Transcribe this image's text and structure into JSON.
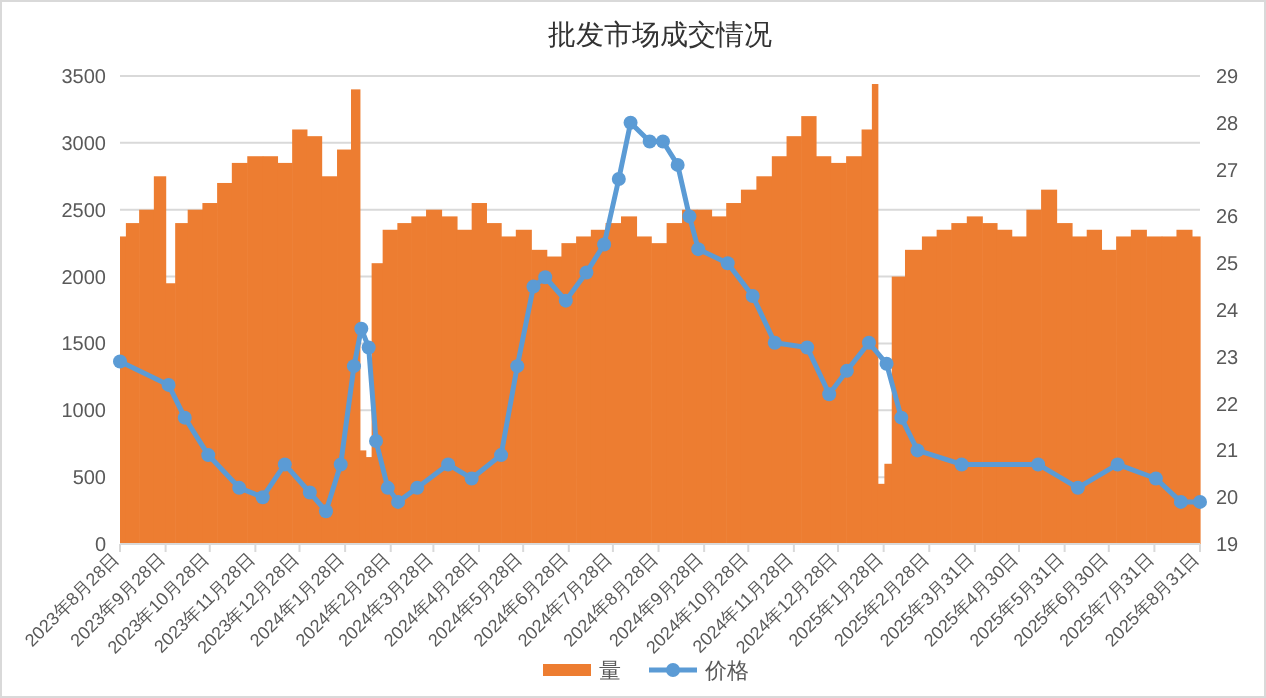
{
  "chart_data": {
    "type": "bar",
    "title": "批发市场成交情况",
    "x": [
      "2023-08-28",
      "2023-09-05",
      "2023-09-15",
      "2023-09-25",
      "2023-10-01",
      "2023-10-08",
      "2023-10-18",
      "2023-10-28",
      "2023-11-07",
      "2023-11-17",
      "2023-11-28",
      "2023-12-08",
      "2023-12-18",
      "2023-12-28",
      "2024-01-07",
      "2024-01-17",
      "2024-01-28",
      "2024-02-05",
      "2024-02-09",
      "2024-02-13",
      "2024-02-17",
      "2024-02-28",
      "2024-03-08",
      "2024-03-18",
      "2024-03-28",
      "2024-04-08",
      "2024-04-18",
      "2024-04-28",
      "2024-05-08",
      "2024-05-18",
      "2024-05-28",
      "2024-06-08",
      "2024-06-18",
      "2024-06-28",
      "2024-07-08",
      "2024-07-18",
      "2024-07-28",
      "2024-08-08",
      "2024-08-18",
      "2024-08-28",
      "2024-09-08",
      "2024-09-18",
      "2024-09-28",
      "2024-10-08",
      "2024-10-18",
      "2024-10-28",
      "2024-11-08",
      "2024-11-18",
      "2024-11-28",
      "2024-12-08",
      "2024-12-18",
      "2024-12-28",
      "2025-01-08",
      "2025-01-18",
      "2025-01-22",
      "2025-01-26",
      "2025-01-31",
      "2025-02-05",
      "2025-02-18",
      "2025-02-28",
      "2025-03-10",
      "2025-03-20",
      "2025-03-31",
      "2025-04-10",
      "2025-04-20",
      "2025-04-30",
      "2025-05-10",
      "2025-05-20",
      "2025-05-31",
      "2025-06-10",
      "2025-06-20",
      "2025-06-30",
      "2025-07-10",
      "2025-07-20",
      "2025-07-31",
      "2025-08-10",
      "2025-08-20",
      "2025-08-31"
    ],
    "series": [
      {
        "name": "量",
        "color": "#ed7d31",
        "values": [
          2300,
          2400,
          2500,
          2750,
          1950,
          2400,
          2500,
          2550,
          2700,
          2850,
          2900,
          2900,
          2850,
          3100,
          3050,
          2750,
          2950,
          3400,
          700,
          650,
          2100,
          2350,
          2400,
          2450,
          2500,
          2450,
          2350,
          2550,
          2400,
          2300,
          2350,
          2200,
          2150,
          2250,
          2300,
          2350,
          2400,
          2450,
          2300,
          2250,
          2400,
          2500,
          2500,
          2450,
          2550,
          2650,
          2750,
          2900,
          3050,
          3200,
          2900,
          2850,
          2900,
          3100,
          3440,
          450,
          600,
          2000,
          2200,
          2300,
          2350,
          2400,
          2450,
          2400,
          2350,
          2300,
          2500,
          2650,
          2400,
          2300,
          2350,
          2200,
          2300,
          2350,
          2300,
          2300,
          2350,
          2300
        ]
      },
      {
        "name": "价格",
        "type": "line",
        "axis": "y2",
        "color": "#5b9bd5",
        "marker": "circle",
        "x": [
          "2023-08-28",
          "2023-09-30",
          "2023-10-11",
          "2023-10-27",
          "2023-11-17",
          "2023-12-03",
          "2023-12-18",
          "2024-01-04",
          "2024-01-15",
          "2024-01-25",
          "2024-02-03",
          "2024-02-08",
          "2024-02-13",
          "2024-02-18",
          "2024-02-26",
          "2024-03-04",
          "2024-03-17",
          "2024-04-07",
          "2024-04-23",
          "2024-05-13",
          "2024-05-24",
          "2024-06-04",
          "2024-06-12",
          "2024-06-26",
          "2024-07-10",
          "2024-07-22",
          "2024-08-01",
          "2024-08-09",
          "2024-08-22",
          "2024-08-31",
          "2024-09-10",
          "2024-09-18",
          "2024-09-24",
          "2024-10-14",
          "2024-10-31",
          "2024-11-15",
          "2024-12-07",
          "2024-12-22",
          "2025-01-03",
          "2025-01-18",
          "2025-01-30",
          "2025-02-09",
          "2025-02-20",
          "2025-03-22",
          "2025-05-13",
          "2025-06-09",
          "2025-07-06",
          "2025-08-01",
          "2025-08-18",
          "2025-08-31"
        ],
        "values": [
          22.9,
          22.4,
          21.7,
          20.9,
          20.2,
          20.0,
          20.7,
          20.1,
          19.7,
          20.7,
          22.8,
          23.6,
          23.2,
          21.2,
          20.2,
          19.9,
          20.2,
          20.7,
          20.4,
          20.9,
          22.8,
          24.5,
          24.7,
          24.2,
          24.8,
          25.4,
          26.8,
          28.0,
          27.6,
          27.6,
          27.1,
          26.0,
          25.3,
          25.0,
          24.3,
          23.3,
          23.2,
          22.2,
          22.7,
          23.3,
          22.85,
          21.7,
          21.0,
          20.7,
          20.7,
          20.2,
          20.7,
          20.4,
          19.9,
          19.9
        ]
      }
    ],
    "xlim": [
      "2023-08-28",
      "2025-08-31"
    ],
    "xticks": [
      {
        "value": "2023-08-28",
        "label": "2023年8月28日"
      },
      {
        "value": "2023-09-28",
        "label": "2023年9月28日"
      },
      {
        "value": "2023-10-28",
        "label": "2023年10月28日"
      },
      {
        "value": "2023-11-28",
        "label": "2023年11月28日"
      },
      {
        "value": "2023-12-28",
        "label": "2023年12月28日"
      },
      {
        "value": "2024-01-28",
        "label": "2024年1月28日"
      },
      {
        "value": "2024-02-28",
        "label": "2024年2月28日"
      },
      {
        "value": "2024-03-28",
        "label": "2024年3月28日"
      },
      {
        "value": "2024-04-28",
        "label": "2024年4月28日"
      },
      {
        "value": "2024-05-28",
        "label": "2024年5月28日"
      },
      {
        "value": "2024-06-28",
        "label": "2024年6月28日"
      },
      {
        "value": "2024-07-28",
        "label": "2024年7月28日"
      },
      {
        "value": "2024-08-28",
        "label": "2024年8月28日"
      },
      {
        "value": "2024-09-28",
        "label": "2024年9月28日"
      },
      {
        "value": "2024-10-28",
        "label": "2024年10月28日"
      },
      {
        "value": "2024-11-28",
        "label": "2024年11月28日"
      },
      {
        "value": "2024-12-28",
        "label": "2024年12月28日"
      },
      {
        "value": "2025-01-28",
        "label": "2025年1月28日"
      },
      {
        "value": "2025-02-28",
        "label": "2025年2月28日"
      },
      {
        "value": "2025-03-31",
        "label": "2025年3月31日"
      },
      {
        "value": "2025-04-30",
        "label": "2025年4月30日"
      },
      {
        "value": "2025-05-31",
        "label": "2025年5月31日"
      },
      {
        "value": "2025-06-30",
        "label": "2025年6月30日"
      },
      {
        "value": "2025-07-31",
        "label": "2025年7月31日"
      },
      {
        "value": "2025-08-31",
        "label": "2025年8月31日"
      }
    ],
    "ylim": [
      0,
      3500
    ],
    "yticks": [
      0,
      500,
      1000,
      1500,
      2000,
      2500,
      3000,
      3500
    ],
    "y2lim": [
      19,
      29
    ],
    "y2ticks": [
      19,
      20,
      21,
      22,
      23,
      24,
      25,
      26,
      27,
      28,
      29
    ],
    "grid": "y",
    "legend": "bottom"
  }
}
